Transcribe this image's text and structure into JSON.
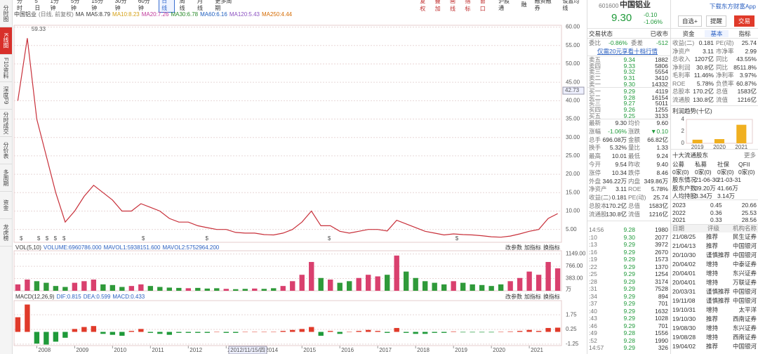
{
  "sidebar": [
    "分时图",
    "K线图",
    "F10资料",
    "深度F9",
    "分时成交",
    "分价表",
    "多周期",
    "资金",
    "龙虎榜"
  ],
  "toolbar": {
    "periods": [
      "分时",
      "5日",
      "1分钟",
      "5分钟",
      "15分钟",
      "30分钟",
      "60分钟",
      "日线",
      "周线",
      "月线",
      "更多周期"
    ],
    "selected": 7,
    "tools": [
      "复权",
      "叠加",
      "画线",
      "指标",
      "窗口"
    ],
    "links": [
      "沪股通",
      "融",
      "融资融券",
      "设置均线"
    ]
  },
  "info": {
    "name": "中国铝业",
    "mode": "(日线, 前复权)",
    "indicators": [
      "MA",
      "MA5:8.79",
      "MA10:8.23",
      "MA20:7.26",
      "MA30:6.78",
      "MA60:6.16",
      "MA120:5.43",
      "MA250:4.44"
    ],
    "colors": [
      "#333333",
      "#333333",
      "#d4a017",
      "#c0399b",
      "#2a8a2a",
      "#1f5fbf",
      "#8a4fc0",
      "#d46a00"
    ]
  },
  "panels": {
    "vol": [
      "VOL(5,10)",
      "VOLUME:6960786.000",
      "MAVOL1:5938151.600",
      "MAVOL2:5752964.200"
    ],
    "macd": [
      "MACD(12,26,9)",
      "DIF:0.815",
      "DEA:0.599",
      "MACD:0.433"
    ],
    "buttons": [
      "改参数",
      "加指标",
      "换指标"
    ]
  },
  "chart_data": [
    {
      "type": "line",
      "color": "#c8303a",
      "grid": true,
      "x": [
        2007.5,
        2007.75,
        2008,
        2008.25,
        2008.5,
        2008.75,
        2009,
        2009.25,
        2009.5,
        2009.75,
        2010,
        2010.25,
        2010.5,
        2010.75,
        2011,
        2011.25,
        2011.5,
        2011.75,
        2012,
        2012.25,
        2012.5,
        2012.75,
        2013,
        2013.25,
        2013.5,
        2013.75,
        2014,
        2014.25,
        2014.5,
        2014.75,
        2015,
        2015.25,
        2015.5,
        2015.75,
        2016,
        2016.25,
        2016.5,
        2016.75,
        2017,
        2017.25,
        2017.5,
        2017.75,
        2018,
        2018.25,
        2018.5,
        2018.75,
        2019,
        2019.25,
        2019.5,
        2019.75,
        2020,
        2020.25,
        2020.5,
        2020.75,
        2021,
        2021.25,
        2021.5,
        2021.75
      ],
      "values": [
        40,
        57,
        35,
        25,
        15,
        7,
        10,
        14,
        17,
        15,
        13,
        10,
        10,
        12,
        11,
        10,
        8,
        7,
        7,
        6,
        5.5,
        5,
        5,
        4.2,
        4,
        4,
        3.6,
        3.5,
        4,
        5,
        7,
        10,
        6,
        6,
        4.5,
        4,
        4.5,
        5,
        5,
        4.6,
        7.5,
        6.5,
        5.5,
        4.5,
        4,
        3.5,
        3.8,
        3.6,
        3.5,
        3.3,
        3,
        2.9,
        3.2,
        3.8,
        4.5,
        5,
        8,
        9.3
      ],
      "xlim": [
        2007.4,
        2021.85
      ],
      "xticks": [
        2008,
        2009,
        2010,
        2011,
        2012,
        2013,
        2014,
        2015,
        2016,
        2017,
        2018,
        2019,
        2020,
        2021
      ],
      "ylim": [
        1.5,
        60.5
      ],
      "yticks": [
        {
          "value": 60,
          "label": "60.00"
        },
        {
          "value": 55,
          "label": "55.00"
        },
        {
          "value": 50,
          "label": "50.00"
        },
        {
          "value": 45,
          "label": "45.00"
        },
        {
          "value": 40,
          "label": "40.00"
        },
        {
          "value": 35,
          "label": "35.00"
        },
        {
          "value": 30,
          "label": "30.00"
        },
        {
          "value": 25,
          "label": "25.00"
        },
        {
          "value": 20,
          "label": "20.00"
        },
        {
          "value": 15,
          "label": "15.00"
        },
        {
          "value": 10,
          "label": "10.00"
        },
        {
          "value": 5,
          "label": "5.00"
        }
      ],
      "max_label": 59.33,
      "cursor_price": 42.73,
      "cursor_date": "2012/11/15/四",
      "markers": {
        "label": "$",
        "x": [
          2007.59,
          2008.05,
          2008.27,
          2008.49,
          2008.72,
          2010.81,
          2012.49,
          2015.72,
          2019.09
        ]
      }
    },
    {
      "type": "bar",
      "color_by": "price_change",
      "up_color": "#d9406e",
      "down_color": "#2f9a3a",
      "grid": true,
      "values": [
        200,
        350,
        300,
        250,
        150,
        120,
        250,
        300,
        350,
        200,
        180,
        120,
        150,
        200,
        150,
        120,
        100,
        90,
        80,
        90,
        70,
        80,
        60,
        50,
        60,
        70,
        60,
        80,
        150,
        300,
        500,
        900,
        400,
        350,
        250,
        300,
        400,
        500,
        450,
        500,
        1100,
        600,
        400,
        300,
        250,
        200,
        300,
        250,
        200,
        180,
        150,
        200,
        300,
        400,
        600,
        500,
        900,
        700
      ],
      "ylim": [
        0,
        1250
      ],
      "yticks": [
        {
          "value": 1149,
          "label": "1149.00"
        },
        {
          "value": 766,
          "label": "766.00"
        },
        {
          "value": 383,
          "label": "383.00"
        }
      ],
      "unit": "万"
    },
    {
      "type": "bar",
      "color_by": "sign",
      "up_color": "#e03a2a",
      "down_color": "#1f9a3a",
      "grid": true,
      "values": [
        1.5,
        2.8,
        -1.2,
        -1.3,
        -1,
        -0.6,
        0.3,
        0.5,
        0.6,
        -0.2,
        -0.3,
        -0.4,
        0.1,
        0.3,
        -0.1,
        -0.2,
        -0.3,
        -0.1,
        -0.1,
        -0.1,
        -0.1,
        0,
        -0.1,
        -0.1,
        0,
        0,
        0,
        0,
        0.1,
        0.2,
        0.3,
        0.5,
        -0.4,
        0.1,
        -0.2,
        0,
        0.1,
        0.2,
        0.1,
        -0.1,
        0.4,
        -0.1,
        -0.2,
        -0.2,
        -0.1,
        -0.1,
        0.05,
        -0.05,
        -0.05,
        -0.05,
        -0.05,
        0,
        0.05,
        0.1,
        0.2,
        0.1,
        0.4,
        0.433
      ],
      "ylim": [
        -1.4,
        3.2
      ],
      "yticks": [
        1.75,
        0.25,
        -1.25
      ]
    },
    {
      "type": "bar",
      "color_by": "single",
      "up_color": "#f0b020",
      "down_color": "#f0b020",
      "grid": false,
      "categories": [
        "2019",
        "2020",
        "2021"
      ],
      "values": [
        0.6,
        0.7,
        3.1
      ],
      "ylim": [
        0,
        4
      ],
      "yticks": [
        0,
        2,
        4
      ]
    }
  ],
  "quote": {
    "code": "601600",
    "name": "中国铝业",
    "price": "9.30",
    "change": "-0.10",
    "pct": "-1.06%",
    "status": [
      "交易状态",
      "已收市"
    ],
    "ratio": [
      "委比",
      "-0.86%",
      "委差",
      "-512"
    ],
    "link": "仅需20元享看十档行情",
    "sell": [
      [
        "卖五",
        "9.34",
        "1882"
      ],
      [
        "卖四",
        "9.33",
        "5806"
      ],
      [
        "卖三",
        "9.32",
        "5554"
      ],
      [
        "卖二",
        "9.31",
        "3410"
      ],
      [
        "卖一",
        "9.30",
        "14332"
      ]
    ],
    "buy": [
      [
        "买一",
        "9.29",
        "4119"
      ],
      [
        "买二",
        "9.28",
        "16154"
      ],
      [
        "买三",
        "9.27",
        "5011"
      ],
      [
        "买四",
        "9.26",
        "1255"
      ],
      [
        "买五",
        "9.25",
        "3133"
      ]
    ],
    "stats": [
      [
        "最新",
        "9.30",
        "均价",
        "9.60"
      ],
      [
        "涨幅",
        "-1.06%",
        "涨跌",
        "▼0.10"
      ],
      [
        "总手",
        "696.08万",
        "金额",
        "66.82亿"
      ],
      [
        "换手",
        "5.32%",
        "量比",
        "1.33"
      ],
      [
        "最高",
        "10.01",
        "最低",
        "9.24"
      ],
      [
        "今开",
        "9.54",
        "昨收",
        "9.40"
      ],
      [
        "涨停",
        "10.34",
        "跌停",
        "8.46"
      ],
      [
        "外盘",
        "346.22万",
        "内盘",
        "349.86万"
      ],
      [
        "净资产",
        "3.11",
        "ROE",
        "5.78%"
      ],
      [
        "收益(二)",
        "0.181",
        "PE(动)",
        "25.74"
      ],
      [
        "总股本",
        "170.2亿",
        "总值",
        "1583亿"
      ],
      [
        "流通股",
        "130.8亿",
        "流值",
        "1216亿"
      ]
    ],
    "trades": [
      [
        "14:56",
        "9.28",
        "1980"
      ],
      [
        ":10",
        "9.30",
        "2077"
      ],
      [
        ":13",
        "9.29",
        "3972"
      ],
      [
        ":16",
        "9.29",
        "2670"
      ],
      [
        ":19",
        "9.29",
        "1573"
      ],
      [
        ":22",
        "9.29",
        "1370"
      ],
      [
        ":25",
        "9.29",
        "1254"
      ],
      [
        ":28",
        "9.29",
        "3174"
      ],
      [
        ":31",
        "9.29",
        "7528"
      ],
      [
        ":34",
        "9.29",
        "894"
      ],
      [
        ":37",
        "9.29",
        "701"
      ],
      [
        ":40",
        "9.29",
        "1632"
      ],
      [
        ":43",
        "9.29",
        "1028"
      ],
      [
        ":46",
        "9.29",
        "701"
      ],
      [
        ":49",
        "9.28",
        "1556"
      ],
      [
        ":52",
        "9.28",
        "1990"
      ],
      [
        "14:57",
        "9.29",
        "326"
      ]
    ]
  },
  "side": {
    "app": "下载东方财富App",
    "buttons": [
      "自选+",
      "提醒",
      "交易"
    ],
    "tabs": [
      "资金",
      "基本",
      "指标"
    ],
    "fund": [
      [
        "收益(二)",
        "0.181",
        "PE(动)",
        "25.74"
      ],
      [
        "净资产",
        "3.11",
        "市净率",
        "2.99"
      ],
      [
        "总收入",
        "1207亿",
        "同比",
        "43.55%"
      ],
      [
        "净利润",
        "30.8亿",
        "同比",
        "8511.8%"
      ],
      [
        "毛利率",
        "11.46%",
        "净利率",
        "3.97%"
      ],
      [
        "ROE",
        "5.78%",
        "负债率",
        "60.87%"
      ],
      [
        "总股本",
        "170.2亿",
        "总值",
        "1583亿"
      ],
      [
        "流通股",
        "130.8亿",
        "流值",
        "1216亿"
      ]
    ],
    "profit_title": "利润趋势(十亿)",
    "holders_title": "十大流通股东",
    "more": "更多",
    "holders": [
      [
        "公募",
        "私募",
        "社保",
        "QFII"
      ],
      [
        "0家(0)",
        "0家(0)",
        "0家(0)",
        "0家(0)"
      ],
      [
        "股东情况",
        "21-06-30",
        "21-03-31"
      ],
      [
        "股东户数",
        "39.20万",
        "41.66万"
      ],
      [
        "人均持股",
        "3.34万",
        "3.14万"
      ]
    ],
    "eps": [
      [
        "2023",
        "0.45",
        "20.66"
      ],
      [
        "2022",
        "0.36",
        "25.53"
      ],
      [
        "2021",
        "0.33",
        "28.56"
      ]
    ],
    "ratings_head": [
      "日期",
      "评级",
      "机构名称"
    ],
    "ratings": [
      [
        "21/08/25",
        "推荐",
        "民生证券"
      ],
      [
        "21/04/13",
        "推荐",
        "中国银河"
      ],
      [
        "20/10/30",
        "谨慎推荐",
        "中国银河"
      ],
      [
        "20/04/02",
        "增持",
        "中泰证券"
      ],
      [
        "20/04/01",
        "增持",
        "东兴证券"
      ],
      [
        "20/04/01",
        "增持",
        "万联证券"
      ],
      [
        "20/03/31",
        "谨慎推荐",
        "中国银河"
      ],
      [
        "19/11/08",
        "谨慎推荐",
        "中国银河"
      ],
      [
        "19/10/31",
        "增持",
        "太平洋"
      ],
      [
        "19/10/30",
        "推荐",
        "西南证券"
      ],
      [
        "19/08/30",
        "增持",
        "东兴证券"
      ],
      [
        "19/08/28",
        "增持",
        "西南证券"
      ],
      [
        "19/04/02",
        "推荐",
        "中国银河"
      ]
    ]
  }
}
